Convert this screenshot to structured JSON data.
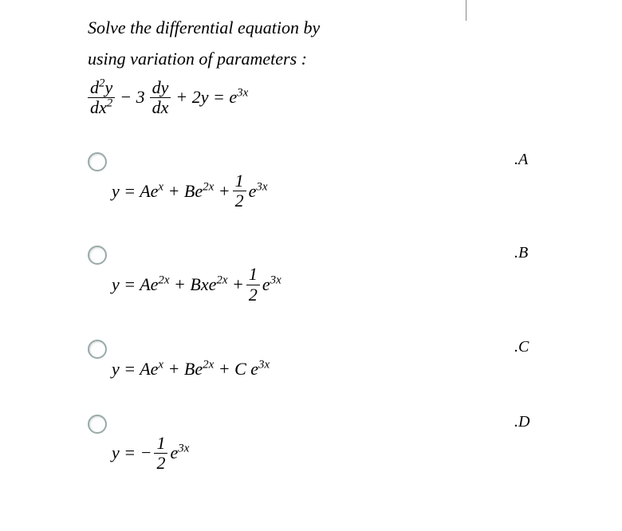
{
  "question": {
    "line1": "Solve the differential equation by",
    "line2": "using variation of parameters :"
  },
  "main_eq": {
    "frac1_num_a": "d",
    "frac1_num_sup": "2",
    "frac1_num_b": "y",
    "frac1_den_a": "dx",
    "frac1_den_sup": "2",
    "minus": " − 3 ",
    "frac2_num": "dy",
    "frac2_den": "dx",
    "rest_a": " + 2y = e",
    "rest_sup": "3x"
  },
  "options": {
    "A": {
      "label": ".A",
      "pre": "y = Ae",
      "sup1": "x",
      "mid1": " + Be",
      "sup2": "2x",
      "mid2": " + ",
      "frac_num": "1",
      "frac_den": "2",
      "post": " e",
      "sup3": "3x"
    },
    "B": {
      "label": ".B",
      "pre": "y = Ae",
      "sup1": "2x",
      "mid1": " + Bxe",
      "sup2": "2x",
      "mid2": " + ",
      "frac_num": "1",
      "frac_den": "2",
      "post": " e",
      "sup3": "3x"
    },
    "C": {
      "label": ".C",
      "pre": "y = Ae",
      "sup1": "x",
      "mid1": " + Be",
      "sup2": "2x",
      "mid2": " + C e",
      "sup3": "3x"
    },
    "D": {
      "label": ".D",
      "pre": "y = − ",
      "frac_num": "1",
      "frac_den": "2",
      "post": " e",
      "sup3": "3x"
    }
  },
  "colors": {
    "text": "#000000",
    "radio_border": "#99aaaa",
    "background": "#ffffff"
  },
  "typography": {
    "font_family": "Comic Sans MS / handwriting-like italic",
    "question_fontsize": 22,
    "equation_fontsize": 22,
    "label_fontsize": 20
  }
}
